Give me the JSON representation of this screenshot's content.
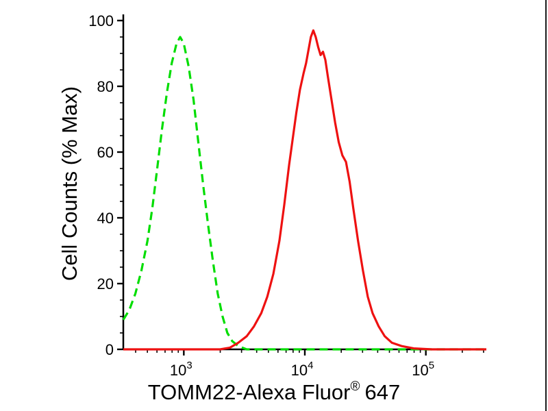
{
  "page": {
    "background": "#ffffff"
  },
  "chart_data": {
    "type": "line",
    "subtype": "flow-cytometry-overlay-histogram",
    "title": "",
    "xlabel": "TOMM22-Alexa Fluor® 647",
    "xlabel_main": "TOMM22-Alexa Fluor",
    "xlabel_sup": "®",
    "xlabel_suffix": "647",
    "ylabel": "Cell Counts (% Max)",
    "x_scale": "log10",
    "xlim_log10": [
      2.5,
      5.5
    ],
    "ylim": [
      0,
      100
    ],
    "x_tick_base": "10",
    "x_major_tick_decades": [
      3,
      4,
      5
    ],
    "y_major_ticks": [
      0,
      20,
      40,
      60,
      80,
      100
    ],
    "y_minor_tick_step": 5,
    "grid": false,
    "legend": "none",
    "axis_color": "#000000",
    "series": [
      {
        "name": "green-dashed-histogram",
        "color": "#00dd00",
        "line_style": "dashed",
        "line_width": 3.2,
        "peak_log10_x": 2.97,
        "peak_y": 95,
        "points": [
          [
            2.5,
            9
          ],
          [
            2.55,
            12
          ],
          [
            2.6,
            17
          ],
          [
            2.65,
            24
          ],
          [
            2.7,
            33
          ],
          [
            2.74,
            43
          ],
          [
            2.78,
            55
          ],
          [
            2.82,
            67
          ],
          [
            2.86,
            78
          ],
          [
            2.9,
            87
          ],
          [
            2.94,
            93
          ],
          [
            2.97,
            95
          ],
          [
            3.0,
            93
          ],
          [
            3.04,
            86
          ],
          [
            3.08,
            76
          ],
          [
            3.12,
            63
          ],
          [
            3.16,
            50
          ],
          [
            3.2,
            38
          ],
          [
            3.24,
            27
          ],
          [
            3.28,
            17
          ],
          [
            3.32,
            10
          ],
          [
            3.36,
            5
          ],
          [
            3.4,
            2.5
          ],
          [
            3.45,
            1
          ],
          [
            3.52,
            0
          ],
          [
            5.5,
            0
          ]
        ]
      },
      {
        "name": "red-solid-histogram",
        "color": "#ee1111",
        "line_style": "solid",
        "line_width": 3.2,
        "peak_log10_x": 4.07,
        "peak_y": 97,
        "points": [
          [
            2.5,
            0
          ],
          [
            3.3,
            0
          ],
          [
            3.38,
            0.5
          ],
          [
            3.45,
            2
          ],
          [
            3.52,
            4
          ],
          [
            3.58,
            7
          ],
          [
            3.64,
            11
          ],
          [
            3.69,
            16
          ],
          [
            3.74,
            23
          ],
          [
            3.79,
            33
          ],
          [
            3.83,
            44
          ],
          [
            3.87,
            56
          ],
          [
            3.9,
            64
          ],
          [
            3.93,
            72
          ],
          [
            3.96,
            79
          ],
          [
            3.99,
            84
          ],
          [
            4.01,
            87
          ],
          [
            4.03,
            91
          ],
          [
            4.05,
            95
          ],
          [
            4.07,
            97
          ],
          [
            4.09,
            95
          ],
          [
            4.11,
            92
          ],
          [
            4.13,
            89.5
          ],
          [
            4.15,
            90.5
          ],
          [
            4.17,
            88
          ],
          [
            4.19,
            83
          ],
          [
            4.22,
            76
          ],
          [
            4.25,
            69
          ],
          [
            4.28,
            63
          ],
          [
            4.31,
            59
          ],
          [
            4.34,
            57
          ],
          [
            4.37,
            51
          ],
          [
            4.4,
            43
          ],
          [
            4.44,
            33
          ],
          [
            4.48,
            24
          ],
          [
            4.52,
            16
          ],
          [
            4.56,
            11
          ],
          [
            4.61,
            7
          ],
          [
            4.66,
            4
          ],
          [
            4.72,
            2
          ],
          [
            4.8,
            1
          ],
          [
            4.9,
            0.3
          ],
          [
            5.05,
            0
          ],
          [
            5.5,
            0
          ]
        ]
      }
    ]
  }
}
